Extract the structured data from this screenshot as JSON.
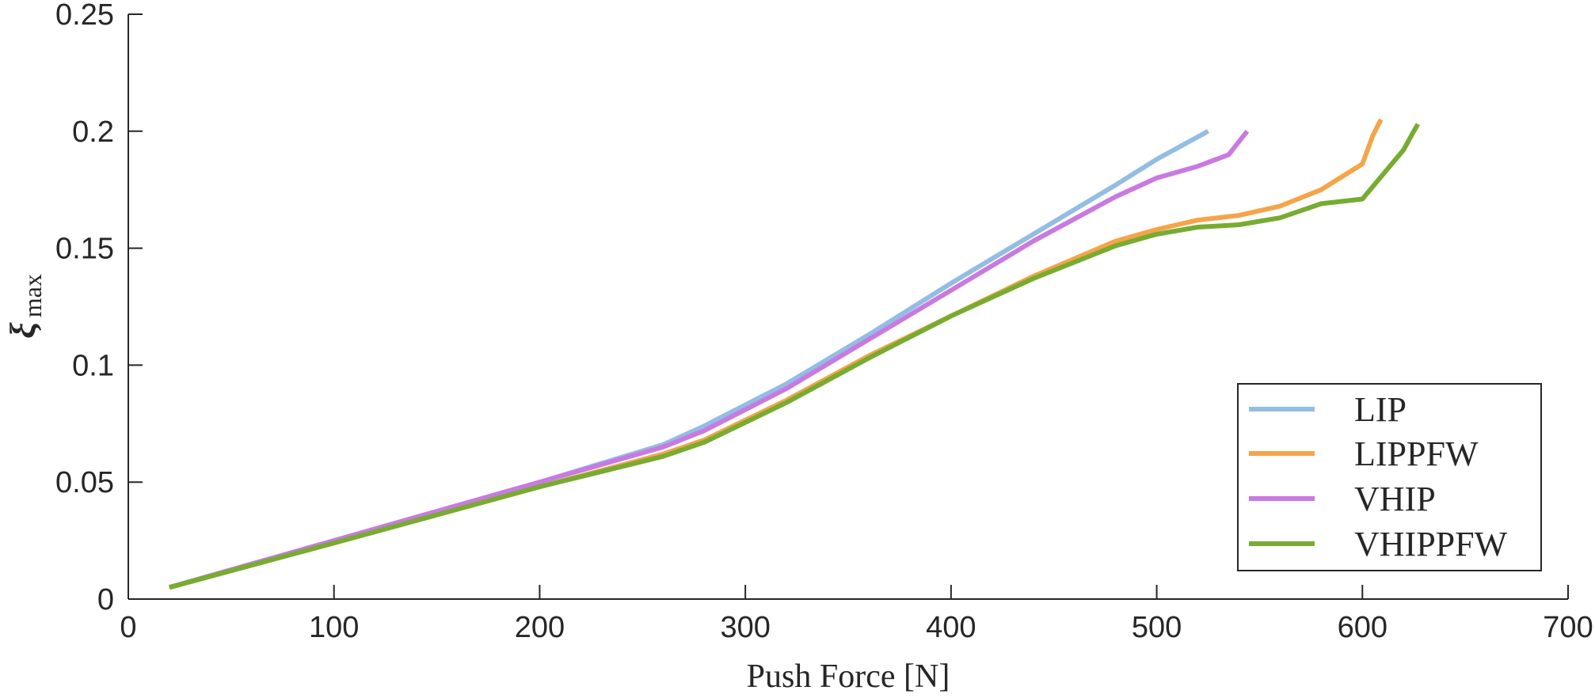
{
  "chart_data": {
    "type": "line",
    "xlabel": "Push Force [N]",
    "ylabel": "ξ",
    "ylabel_sub": "max",
    "xlim": [
      0,
      700
    ],
    "ylim": [
      0,
      0.25
    ],
    "xticks": [
      0,
      100,
      200,
      300,
      400,
      500,
      600,
      700
    ],
    "xtick_labels": [
      "0",
      "100",
      "200",
      "300",
      "400",
      "500",
      "600",
      "700"
    ],
    "yticks": [
      0,
      0.05,
      0.1,
      0.15,
      0.2,
      0.25
    ],
    "ytick_labels": [
      "0",
      "0.05",
      "0.1",
      "0.15",
      "0.2",
      "0.25"
    ],
    "grid": false,
    "legend_position": "bottom-right",
    "series": [
      {
        "name": "LIP",
        "color": "#93bde3",
        "x": [
          20,
          100,
          200,
          260,
          280,
          320,
          360,
          400,
          440,
          480,
          500,
          525
        ],
        "y": [
          0.005,
          0.025,
          0.05,
          0.066,
          0.074,
          0.092,
          0.113,
          0.135,
          0.156,
          0.177,
          0.188,
          0.2
        ]
      },
      {
        "name": "LIPPFW",
        "color": "#f5a44a",
        "x": [
          20,
          100,
          200,
          260,
          280,
          320,
          360,
          400,
          440,
          480,
          500,
          520,
          540,
          560,
          580,
          600,
          605,
          609
        ],
        "y": [
          0.005,
          0.024,
          0.048,
          0.062,
          0.068,
          0.085,
          0.104,
          0.121,
          0.138,
          0.153,
          0.158,
          0.162,
          0.164,
          0.168,
          0.175,
          0.186,
          0.198,
          0.205
        ]
      },
      {
        "name": "VHIP",
        "color": "#c97ae0",
        "x": [
          20,
          100,
          200,
          260,
          280,
          320,
          360,
          400,
          440,
          480,
          500,
          520,
          535,
          544
        ],
        "y": [
          0.005,
          0.025,
          0.05,
          0.065,
          0.072,
          0.09,
          0.111,
          0.132,
          0.153,
          0.172,
          0.18,
          0.185,
          0.19,
          0.2
        ]
      },
      {
        "name": "VHIPPFW",
        "color": "#77ac30",
        "x": [
          20,
          100,
          200,
          260,
          280,
          320,
          360,
          400,
          440,
          480,
          500,
          520,
          540,
          560,
          580,
          600,
          620,
          625,
          627
        ],
        "y": [
          0.005,
          0.024,
          0.048,
          0.061,
          0.067,
          0.084,
          0.103,
          0.121,
          0.137,
          0.151,
          0.156,
          0.159,
          0.16,
          0.163,
          0.169,
          0.171,
          0.192,
          0.2,
          0.203
        ]
      }
    ]
  }
}
